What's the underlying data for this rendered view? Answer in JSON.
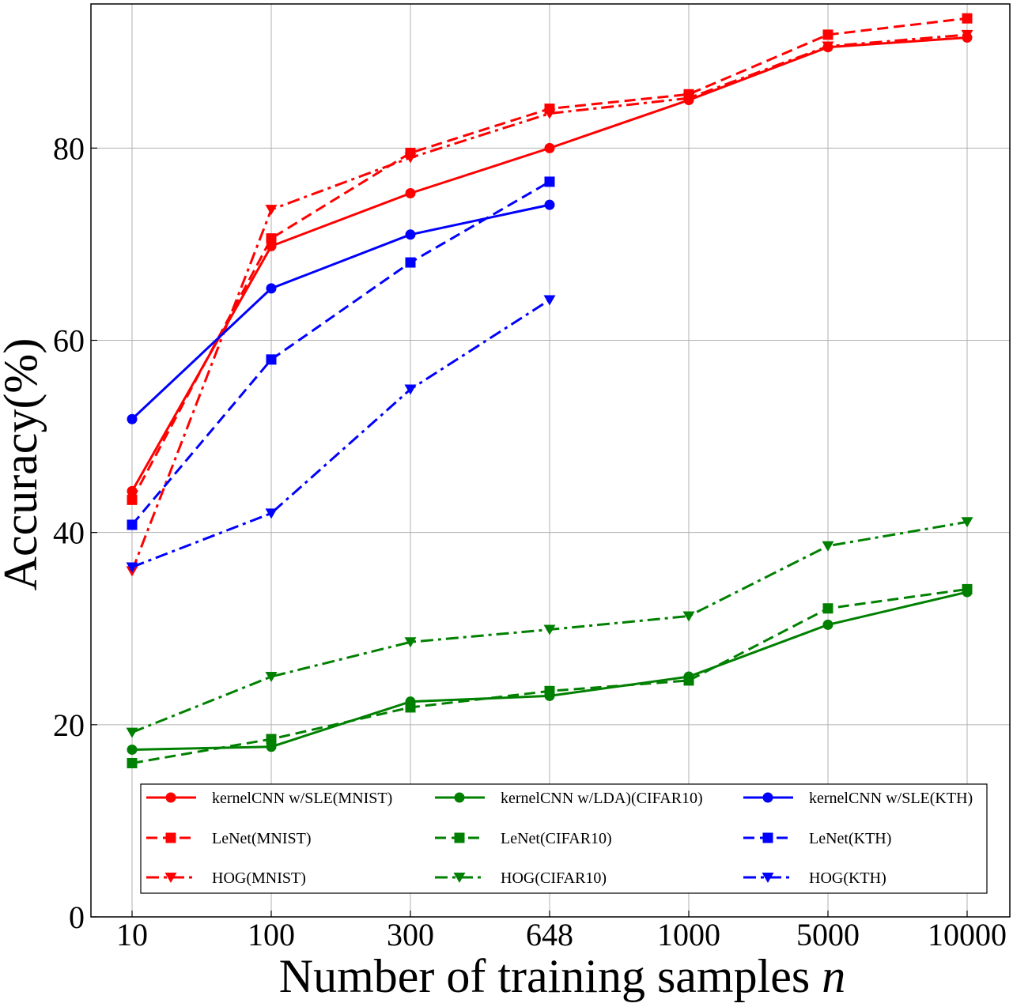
{
  "chart_data": {
    "type": "line",
    "xlabel_main": "Number of training samples ",
    "xlabel_var": "n",
    "ylabel": "Accuracy(%)",
    "categories": [
      "10",
      "100",
      "300",
      "648",
      "1000",
      "5000",
      "10000"
    ],
    "yticks": [
      "0",
      "20",
      "40",
      "60",
      "80"
    ],
    "ylim": [
      0,
      95
    ],
    "grid": true,
    "legend_position": "bottom",
    "series": [
      {
        "name": "kernelCNN w/SLE(MNIST)",
        "color": "#ff0000",
        "linestyle": "solid",
        "marker": "circle",
        "values": [
          44.3,
          69.8,
          75.3,
          80.0,
          85.0,
          90.5,
          91.5
        ]
      },
      {
        "name": "LeNet(MNIST)",
        "color": "#ff0000",
        "linestyle": "dashed",
        "marker": "square",
        "values": [
          43.4,
          70.6,
          79.5,
          84.1,
          85.6,
          91.8,
          93.5
        ]
      },
      {
        "name": "HOG(MNIST)",
        "color": "#ff0000",
        "linestyle": "dashdot",
        "marker": "triangle-down",
        "values": [
          36.0,
          73.6,
          79.0,
          83.6,
          85.2,
          90.6,
          91.8
        ]
      },
      {
        "name": "kernelCNN w/LDA)(CIFAR10)",
        "color": "#008000",
        "linestyle": "solid",
        "marker": "circle",
        "values": [
          17.4,
          17.7,
          22.4,
          23.0,
          25.0,
          30.4,
          33.8
        ]
      },
      {
        "name": "LeNet(CIFAR10)",
        "color": "#008000",
        "linestyle": "dashed",
        "marker": "square",
        "values": [
          16.0,
          18.5,
          21.8,
          23.5,
          24.6,
          32.1,
          34.1
        ]
      },
      {
        "name": "HOG(CIFAR10)",
        "color": "#008000",
        "linestyle": "dashdot",
        "marker": "triangle-down",
        "values": [
          19.2,
          25.0,
          28.6,
          29.9,
          31.3,
          38.6,
          41.1
        ]
      },
      {
        "name": "kernelCNN w/SLE(KTH)",
        "color": "#0000ff",
        "linestyle": "solid",
        "marker": "circle",
        "values": [
          51.8,
          65.4,
          71.0,
          74.1,
          null,
          null,
          null
        ]
      },
      {
        "name": "LeNet(KTH)",
        "color": "#0000ff",
        "linestyle": "dashed",
        "marker": "square",
        "values": [
          40.8,
          58.0,
          68.1,
          76.5,
          null,
          null,
          null
        ]
      },
      {
        "name": "HOG(KTH)",
        "color": "#0000ff",
        "linestyle": "dashdot",
        "marker": "triangle-down",
        "values": [
          36.4,
          42.0,
          54.9,
          64.2,
          null,
          null,
          null
        ]
      }
    ]
  }
}
